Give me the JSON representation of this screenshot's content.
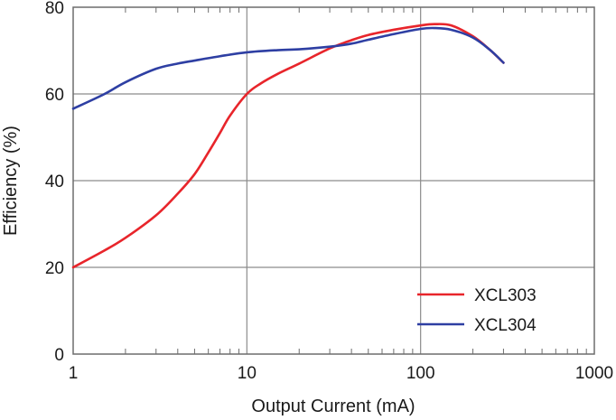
{
  "chart_data": {
    "type": "line",
    "title": "",
    "xlabel": "Output Current (mA)",
    "ylabel": "Efficiency (%)",
    "x_scale": "log",
    "xlim": [
      1,
      1000
    ],
    "ylim": [
      0,
      80
    ],
    "x_ticks": [
      1,
      10,
      100,
      1000
    ],
    "x_tick_labels": [
      "1",
      "10",
      "100",
      "1000"
    ],
    "y_ticks": [
      0,
      20,
      40,
      60,
      80
    ],
    "y_tick_labels": [
      "0",
      "20",
      "40",
      "60",
      "80"
    ],
    "grid": true,
    "legend_position": "bottom-right",
    "series": [
      {
        "name": "XCL303",
        "color": "#e8252b",
        "x": [
          1,
          1.5,
          2,
          3,
          4,
          5,
          6,
          7,
          8,
          10,
          12,
          15,
          20,
          30,
          40,
          50,
          70,
          100,
          120,
          150,
          200,
          250,
          300
        ],
        "y": [
          20,
          23.8,
          26.8,
          32,
          37,
          41.5,
          46.5,
          51,
          55,
          60,
          62.4,
          64.6,
          67,
          70.5,
          72.4,
          73.6,
          74.8,
          75.8,
          76.1,
          75.8,
          73.3,
          70.2,
          67.2
        ]
      },
      {
        "name": "XCL304",
        "color": "#2e3fa3",
        "x": [
          1,
          1.5,
          2,
          3,
          4,
          5,
          7,
          10,
          15,
          20,
          30,
          40,
          50,
          70,
          100,
          120,
          150,
          200,
          250,
          300
        ],
        "y": [
          56.6,
          59.9,
          62.7,
          65.8,
          67,
          67.7,
          68.7,
          69.6,
          70.1,
          70.3,
          70.9,
          71.6,
          72.5,
          73.8,
          75,
          75.2,
          74.8,
          73,
          70.2,
          67.2
        ]
      }
    ]
  }
}
